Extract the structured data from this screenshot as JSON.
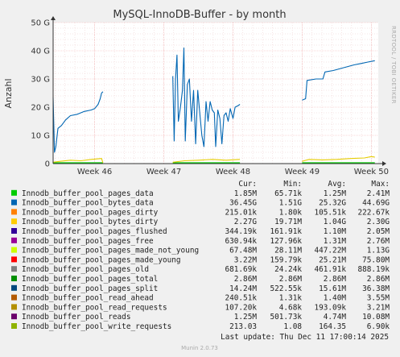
{
  "colors": {
    "page_bg": "#f0f0f0",
    "plot_bg": "#ffffff",
    "grid": "#f3b0b0",
    "series_bytes_data": "#0066b3",
    "series_bytes_dirty": "#e6cc00",
    "series_pages_data": "#00cc00"
  },
  "chart_data": {
    "type": "line",
    "title": "MySQL-InnoDB-Buffer - by month",
    "ylabel": "Anzahl",
    "side_label": "RRDTOOL / TOBI OETIKER",
    "y_ticks": [
      "0",
      "10 G",
      "20 G",
      "30 G",
      "40 G",
      "50 G"
    ],
    "ylim": [
      0,
      50
    ],
    "y_unit": "G",
    "x_ticks": [
      "Week 46",
      "Week 47",
      "Week 48",
      "Week 49",
      "Week 50"
    ],
    "xlim": [
      45.4,
      50.1
    ],
    "grid": true,
    "series": [
      {
        "name": "Innodb_buffer_pool_bytes_data",
        "color": "#0066b3",
        "segments": [
          [
            [
              45.4,
              23.5
            ],
            [
              45.42,
              4.0
            ],
            [
              45.44,
              6.0
            ],
            [
              45.47,
              12.5
            ],
            [
              45.52,
              13.5
            ],
            [
              45.58,
              15.5
            ],
            [
              45.65,
              17.0
            ],
            [
              45.75,
              17.5
            ],
            [
              45.85,
              18.5
            ],
            [
              45.95,
              19.0
            ],
            [
              46.0,
              19.5
            ],
            [
              46.05,
              21.0
            ],
            [
              46.08,
              23.0
            ],
            [
              46.1,
              25.0
            ],
            [
              46.12,
              25.5
            ]
          ],
          [
            [
              47.13,
              31.0
            ],
            [
              47.15,
              8.0
            ],
            [
              47.17,
              30.0
            ],
            [
              47.19,
              38.5
            ],
            [
              47.21,
              15.0
            ],
            [
              47.24,
              20.0
            ],
            [
              47.27,
              26.0
            ],
            [
              47.29,
              41.0
            ],
            [
              47.31,
              8.0
            ],
            [
              47.34,
              28.0
            ],
            [
              47.37,
              30.0
            ],
            [
              47.4,
              15.0
            ],
            [
              47.43,
              26.0
            ],
            [
              47.46,
              7.0
            ],
            [
              47.49,
              26.0
            ],
            [
              47.52,
              18.0
            ],
            [
              47.55,
              10.0
            ],
            [
              47.58,
              6.0
            ],
            [
              47.61,
              22.0
            ],
            [
              47.64,
              15.0
            ],
            [
              47.67,
              22.0
            ],
            [
              47.7,
              19.0
            ],
            [
              47.73,
              18.0
            ],
            [
              47.75,
              6.0
            ],
            [
              47.78,
              19.0
            ],
            [
              47.81,
              16.0
            ],
            [
              47.84,
              7.0
            ],
            [
              47.87,
              17.0
            ],
            [
              47.9,
              18.0
            ],
            [
              47.93,
              15.0
            ],
            [
              47.96,
              19.5
            ],
            [
              48.0,
              16.0
            ],
            [
              48.03,
              20.0
            ],
            [
              48.07,
              20.5
            ],
            [
              48.1,
              21.0
            ]
          ],
          [
            [
              49.0,
              22.5
            ],
            [
              49.05,
              23.0
            ],
            [
              49.07,
              29.5
            ],
            [
              49.2,
              30.0
            ],
            [
              49.3,
              30.0
            ],
            [
              49.33,
              32.5
            ],
            [
              49.45,
              33.0
            ],
            [
              49.6,
              34.0
            ],
            [
              49.75,
              35.0
            ],
            [
              49.85,
              35.5
            ],
            [
              49.95,
              36.0
            ],
            [
              50.05,
              36.5
            ]
          ]
        ]
      },
      {
        "name": "Innodb_buffer_pool_bytes_dirty",
        "color": "#e6cc00",
        "segments": [
          [
            [
              45.4,
              0.5
            ],
            [
              45.5,
              0.8
            ],
            [
              45.65,
              1.2
            ],
            [
              45.8,
              1.0
            ],
            [
              45.95,
              1.5
            ],
            [
              46.1,
              1.8
            ],
            [
              46.12,
              0.3
            ]
          ],
          [
            [
              47.13,
              0.5
            ],
            [
              47.3,
              1.0
            ],
            [
              47.5,
              1.2
            ],
            [
              47.7,
              1.5
            ],
            [
              47.9,
              1.2
            ],
            [
              48.1,
              1.5
            ]
          ],
          [
            [
              49.0,
              0.8
            ],
            [
              49.1,
              1.5
            ],
            [
              49.3,
              1.3
            ],
            [
              49.5,
              1.5
            ],
            [
              49.7,
              1.8
            ],
            [
              49.9,
              2.0
            ],
            [
              50.0,
              2.5
            ],
            [
              50.05,
              2.3
            ]
          ]
        ]
      },
      {
        "name": "Innodb_buffer_pool_pages_data",
        "color": "#00cc00",
        "segments": [
          [
            [
              45.4,
              0.3
            ],
            [
              46.12,
              0.3
            ]
          ],
          [
            [
              47.13,
              0.3
            ],
            [
              48.1,
              0.3
            ]
          ],
          [
            [
              49.0,
              0.3
            ],
            [
              50.05,
              0.3
            ]
          ]
        ]
      }
    ]
  },
  "legend": {
    "headers": [
      "Cur:",
      "Min:",
      "Avg:",
      "Max:"
    ],
    "rows": [
      {
        "name": "Innodb_buffer_pool_pages_data",
        "color": "#00cc00",
        "cur": "1.85M",
        "min": "65.71k",
        "avg": "1.25M",
        "max": "2.41M"
      },
      {
        "name": "Innodb_buffer_pool_bytes_data",
        "color": "#0066b3",
        "cur": "36.45G",
        "min": "1.51G",
        "avg": "25.32G",
        "max": "44.69G"
      },
      {
        "name": "Innodb_buffer_pool_pages_dirty",
        "color": "#ff8000",
        "cur": "215.01k",
        "min": "1.80k",
        "avg": "105.51k",
        "max": "222.67k"
      },
      {
        "name": "Innodb_buffer_pool_bytes_dirty",
        "color": "#ffcc00",
        "cur": "2.27G",
        "min": "19.71M",
        "avg": "1.04G",
        "max": "2.30G"
      },
      {
        "name": "Innodb_buffer_pool_pages_flushed",
        "color": "#330099",
        "cur": "344.19k",
        "min": "161.91k",
        "avg": "1.10M",
        "max": "2.05M"
      },
      {
        "name": "Innodb_buffer_pool_pages_free",
        "color": "#990099",
        "cur": "630.94k",
        "min": "127.96k",
        "avg": "1.31M",
        "max": "2.76M"
      },
      {
        "name": "Innodb_buffer_pool_pages_made_not_young",
        "color": "#ccff00",
        "cur": "67.48M",
        "min": "28.11M",
        "avg": "447.22M",
        "max": "1.13G"
      },
      {
        "name": "Innodb_buffer_pool_pages_made_young",
        "color": "#ff0000",
        "cur": "3.22M",
        "min": "159.79k",
        "avg": "25.21M",
        "max": "75.80M"
      },
      {
        "name": "Innodb_buffer_pool_pages_old",
        "color": "#808080",
        "cur": "681.69k",
        "min": "24.24k",
        "avg": "461.91k",
        "max": "888.19k"
      },
      {
        "name": "Innodb_buffer_pool_pages_total",
        "color": "#008f00",
        "cur": "2.86M",
        "min": "2.86M",
        "avg": "2.86M",
        "max": "2.86M"
      },
      {
        "name": "Innodb_buffer_pool_pages_split",
        "color": "#00487d",
        "cur": "14.24M",
        "min": "522.55k",
        "avg": "15.61M",
        "max": "36.38M"
      },
      {
        "name": "Innodb_buffer_pool_read_ahead",
        "color": "#b35a00",
        "cur": "240.51k",
        "min": "1.31k",
        "avg": "1.40M",
        "max": "3.55M"
      },
      {
        "name": "Innodb_buffer_pool_read_requests",
        "color": "#b38f00",
        "cur": "107.20k",
        "min": "4.68k",
        "avg": "193.09k",
        "max": "3.21M"
      },
      {
        "name": "Innodb_buffer_pool_reads",
        "color": "#6b006b",
        "cur": "1.25M",
        "min": "501.73k",
        "avg": "4.74M",
        "max": "10.08M"
      },
      {
        "name": "Innodb_buffer_pool_write_requests",
        "color": "#8fb300",
        "cur": "213.03",
        "min": "1.08",
        "avg": "164.35",
        "max": "6.90k"
      }
    ]
  },
  "last_update": "Last update: Thu Dec 11 17:00:14 2025",
  "footer": "Munin 2.0.73"
}
